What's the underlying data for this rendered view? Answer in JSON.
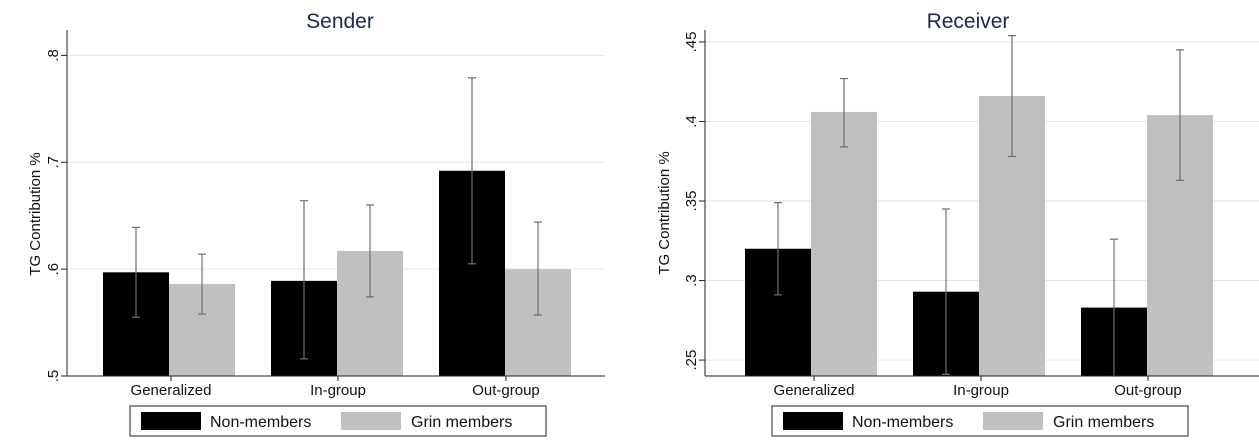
{
  "chart_data": [
    {
      "type": "bar",
      "title": "Sender",
      "ylabel": "TG Contribution %",
      "categories": [
        "Generalized",
        "In-group",
        "Out-group"
      ],
      "ylim": [
        0.5,
        0.82
      ],
      "yticks": [
        0.5,
        0.6,
        0.7,
        0.8
      ],
      "ytick_labels": [
        ".5",
        ".6",
        ".7",
        ".8"
      ],
      "grid": true,
      "legend_position": "bottom",
      "series": [
        {
          "name": "Non-members",
          "color": "#000000",
          "values": [
            0.597,
            0.589,
            0.692
          ],
          "ci_low": [
            0.555,
            0.516,
            0.605
          ],
          "ci_high": [
            0.639,
            0.664,
            0.779
          ]
        },
        {
          "name": "Grin members",
          "color": "#c0c0c0",
          "values": [
            0.586,
            0.617,
            0.6
          ],
          "ci_low": [
            0.558,
            0.574,
            0.557
          ],
          "ci_high": [
            0.614,
            0.66,
            0.644
          ]
        }
      ]
    },
    {
      "type": "bar",
      "title": "Receiver",
      "ylabel": "TG Contribution %",
      "categories": [
        "Generalized",
        "In-group",
        "Out-group"
      ],
      "ylim": [
        0.24,
        0.455
      ],
      "yticks": [
        0.25,
        0.3,
        0.35,
        0.4,
        0.45
      ],
      "ytick_labels": [
        ".25",
        ".3",
        ".35",
        ".4",
        ".45"
      ],
      "grid": true,
      "legend_position": "bottom",
      "series": [
        {
          "name": "Non-members",
          "color": "#000000",
          "values": [
            0.32,
            0.293,
            0.283
          ],
          "ci_low": [
            0.291,
            0.241,
            0.24
          ],
          "ci_high": [
            0.349,
            0.345,
            0.326
          ]
        },
        {
          "name": "Grin members",
          "color": "#c0c0c0",
          "values": [
            0.406,
            0.416,
            0.404
          ],
          "ci_low": [
            0.384,
            0.378,
            0.363
          ],
          "ci_high": [
            0.427,
            0.454,
            0.445
          ]
        }
      ]
    }
  ]
}
